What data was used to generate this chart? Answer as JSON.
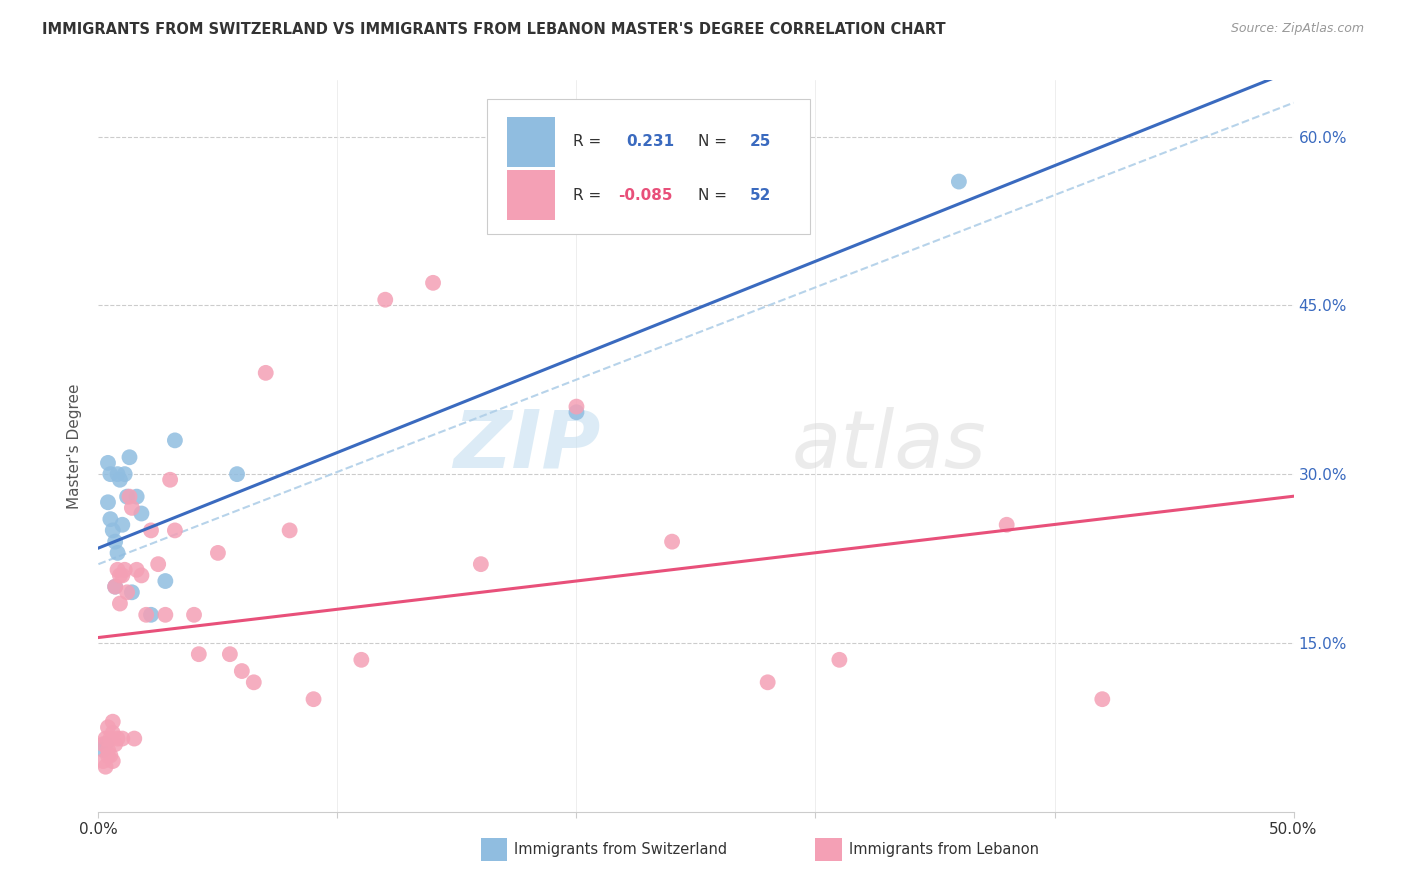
{
  "title": "IMMIGRANTS FROM SWITZERLAND VS IMMIGRANTS FROM LEBANON MASTER'S DEGREE CORRELATION CHART",
  "source": "Source: ZipAtlas.com",
  "ylabel": "Master's Degree",
  "xmin": 0.0,
  "xmax": 0.5,
  "ymin": 0.0,
  "ymax": 0.65,
  "yticks": [
    0.15,
    0.3,
    0.45,
    0.6
  ],
  "ytick_labels": [
    "15.0%",
    "30.0%",
    "45.0%",
    "60.0%"
  ],
  "switzerland_color": "#90bde0",
  "lebanon_color": "#f4a0b5",
  "swiss_line_color": "#3a6abf",
  "lebanon_line_color": "#e8507a",
  "dashed_line_color": "#b0cfe8",
  "switzerland_R": 0.231,
  "switzerland_N": 25,
  "lebanon_R": -0.085,
  "lebanon_N": 52,
  "switzerland_x": [
    0.002,
    0.003,
    0.004,
    0.004,
    0.005,
    0.005,
    0.006,
    0.007,
    0.007,
    0.008,
    0.008,
    0.009,
    0.01,
    0.011,
    0.012,
    0.013,
    0.014,
    0.016,
    0.018,
    0.022,
    0.028,
    0.032,
    0.058,
    0.2,
    0.36
  ],
  "switzerland_y": [
    0.055,
    0.06,
    0.275,
    0.31,
    0.26,
    0.3,
    0.25,
    0.24,
    0.2,
    0.23,
    0.3,
    0.295,
    0.255,
    0.3,
    0.28,
    0.315,
    0.195,
    0.28,
    0.265,
    0.175,
    0.205,
    0.33,
    0.3,
    0.355,
    0.56
  ],
  "lebanon_x": [
    0.002,
    0.002,
    0.003,
    0.003,
    0.004,
    0.004,
    0.004,
    0.005,
    0.005,
    0.006,
    0.006,
    0.006,
    0.007,
    0.007,
    0.008,
    0.008,
    0.009,
    0.009,
    0.01,
    0.01,
    0.011,
    0.012,
    0.013,
    0.014,
    0.015,
    0.016,
    0.018,
    0.02,
    0.022,
    0.025,
    0.028,
    0.03,
    0.032,
    0.04,
    0.042,
    0.05,
    0.055,
    0.06,
    0.065,
    0.07,
    0.08,
    0.09,
    0.11,
    0.12,
    0.14,
    0.16,
    0.2,
    0.24,
    0.28,
    0.31,
    0.38,
    0.42
  ],
  "lebanon_y": [
    0.045,
    0.06,
    0.04,
    0.065,
    0.05,
    0.055,
    0.075,
    0.05,
    0.065,
    0.045,
    0.07,
    0.08,
    0.06,
    0.2,
    0.065,
    0.215,
    0.185,
    0.21,
    0.065,
    0.21,
    0.215,
    0.195,
    0.28,
    0.27,
    0.065,
    0.215,
    0.21,
    0.175,
    0.25,
    0.22,
    0.175,
    0.295,
    0.25,
    0.175,
    0.14,
    0.23,
    0.14,
    0.125,
    0.115,
    0.39,
    0.25,
    0.1,
    0.135,
    0.455,
    0.47,
    0.22,
    0.36,
    0.24,
    0.115,
    0.135,
    0.255,
    0.1
  ]
}
